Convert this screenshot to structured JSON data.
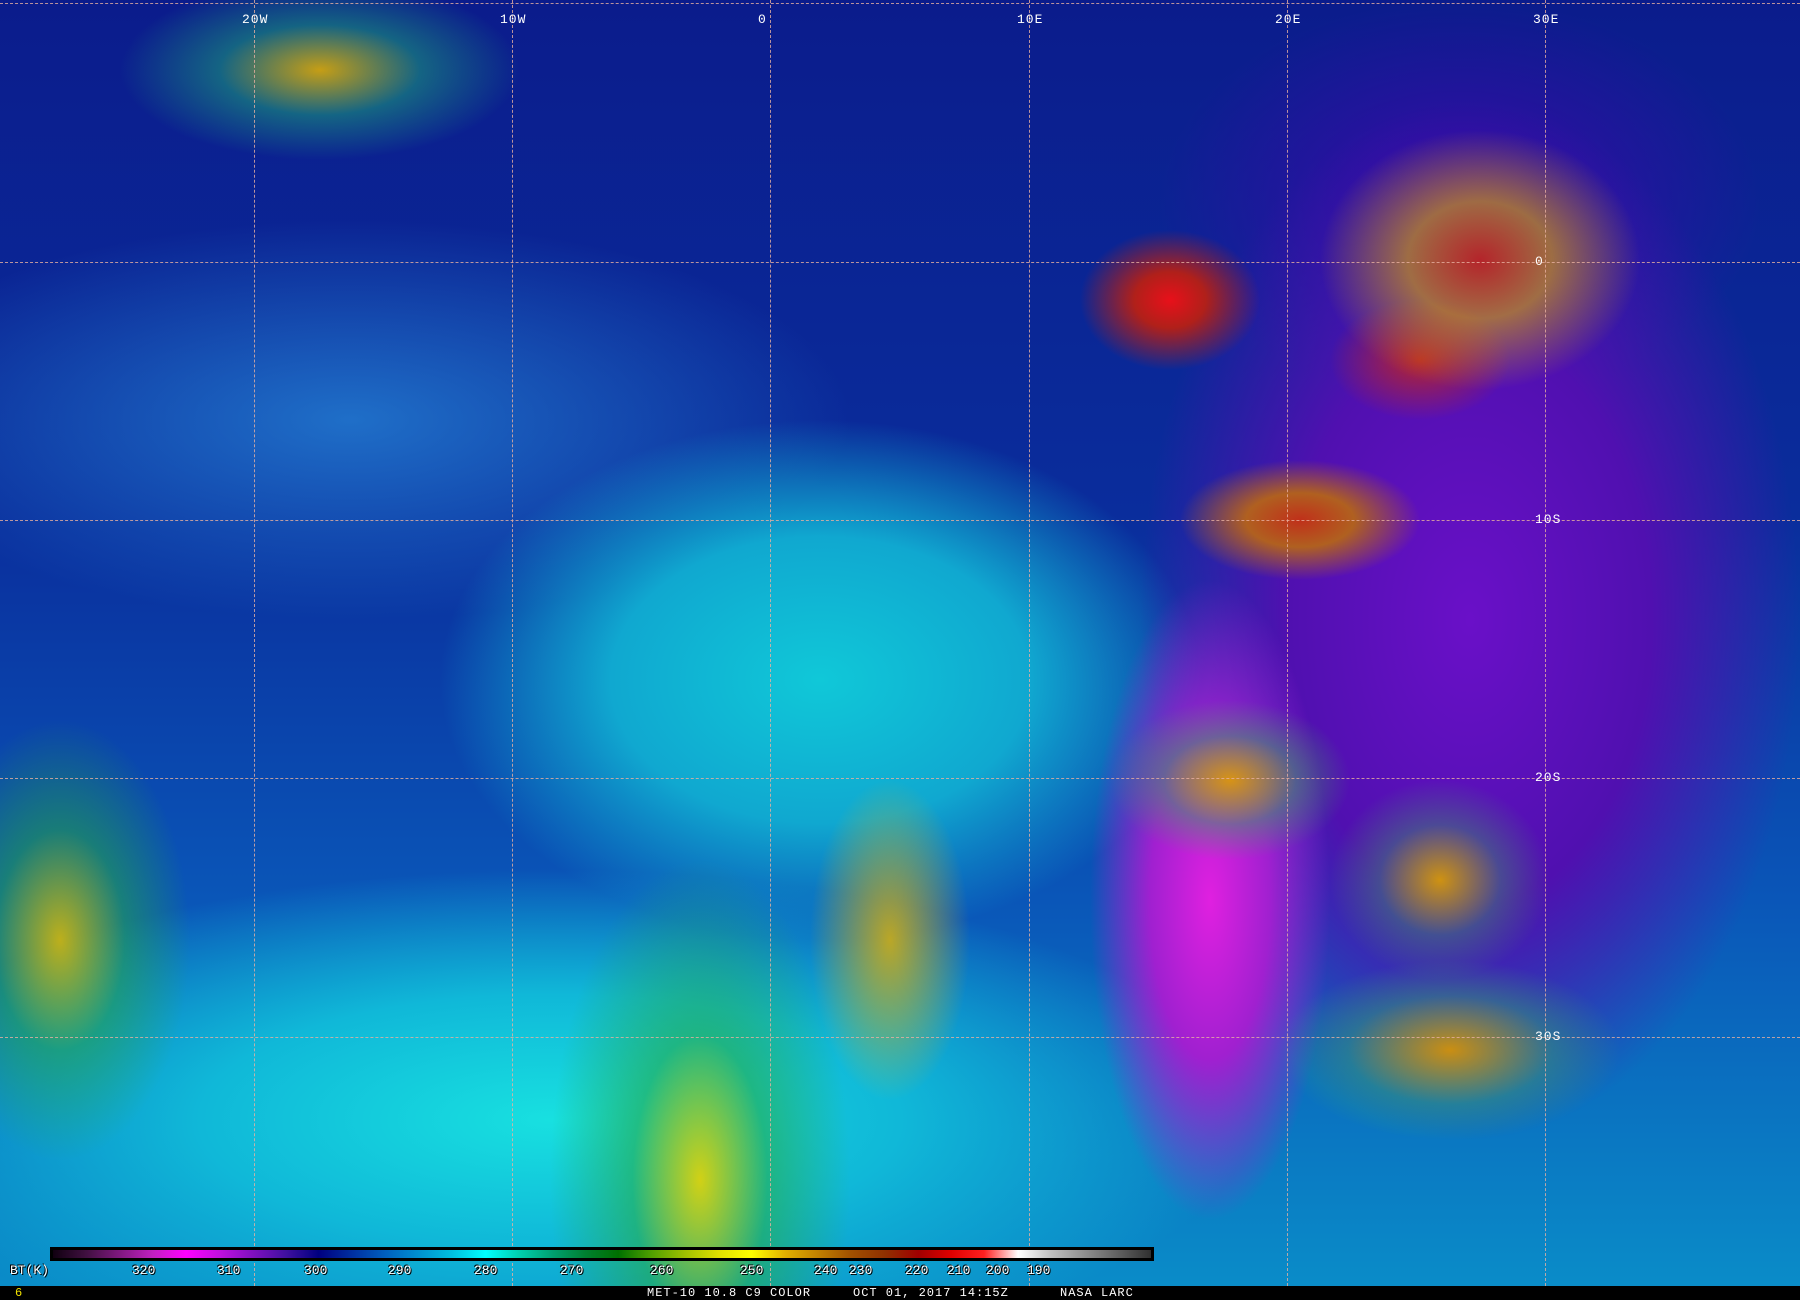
{
  "image": {
    "content": "satellite infrared imagery",
    "region": "South Atlantic and southern Africa"
  },
  "grid": {
    "lon_labels": [
      "20W",
      "10W",
      "0",
      "10E",
      "20E",
      "30E"
    ],
    "lat_labels": [
      "0",
      "10S",
      "20S",
      "30S"
    ]
  },
  "colorbar": {
    "unit_label": "BT(K)",
    "ticks": [
      "320",
      "310",
      "300",
      "290",
      "280",
      "270",
      "260",
      "250",
      "240",
      "230",
      "220",
      "210",
      "200",
      "190"
    ],
    "colors": [
      "#100010",
      "#401040",
      "#801880",
      "#c020c0",
      "#ff00ff",
      "#c010e0",
      "#8010c0",
      "#4010a0",
      "#000080",
      "#0030a0",
      "#0060c0",
      "#0090d0",
      "#00c0e0",
      "#00ffff",
      "#00d0b0",
      "#00a070",
      "#008030",
      "#007000",
      "#50a000",
      "#a0c000",
      "#e0e000",
      "#ffff00",
      "#e0b000",
      "#c08000",
      "#a05000",
      "#903000",
      "#a00000",
      "#e00000",
      "#ff2020",
      "#ffffff",
      "#c0c0c0",
      "#909090",
      "#606060",
      "#303030"
    ]
  },
  "footer": {
    "frame_number": "6",
    "product": "MET-10 10.8 C9 COLOR",
    "datetime": "OCT 01, 2017 14:15Z",
    "credit": "NASA LARC"
  }
}
